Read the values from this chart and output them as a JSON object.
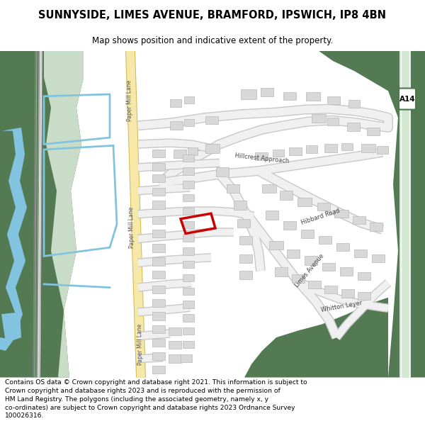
{
  "title": "SUNNYSIDE, LIMES AVENUE, BRAMFORD, IPSWICH, IP8 4BN",
  "subtitle": "Map shows position and indicative extent of the property.",
  "footer": "Contains OS data © Crown copyright and database right 2021. This information is subject to Crown copyright and database rights 2023 and is reproduced with the permission of\nHM Land Registry. The polygons (including the associated geometry, namely x, y co-ordinates) are subject to Crown copyright and database rights 2023 Ordnance Survey\n100026316.",
  "bg_white": "#ffffff",
  "green_dark": "#547a54",
  "green_light": "#c8dcc8",
  "road_yellow_fill": "#f5e8a8",
  "road_yellow_edge": "#d4b84a",
  "blue_water": "#82c4e0",
  "building_fill": "#d8d8d8",
  "building_edge": "#b8b8b8",
  "road_fill": "#f0f0f0",
  "road_edge": "#c8c8c8",
  "highlight_red": "#cc0000",
  "text_dark": "#444444",
  "text_road": "#555555",
  "a14_road": "#d0e8d0"
}
